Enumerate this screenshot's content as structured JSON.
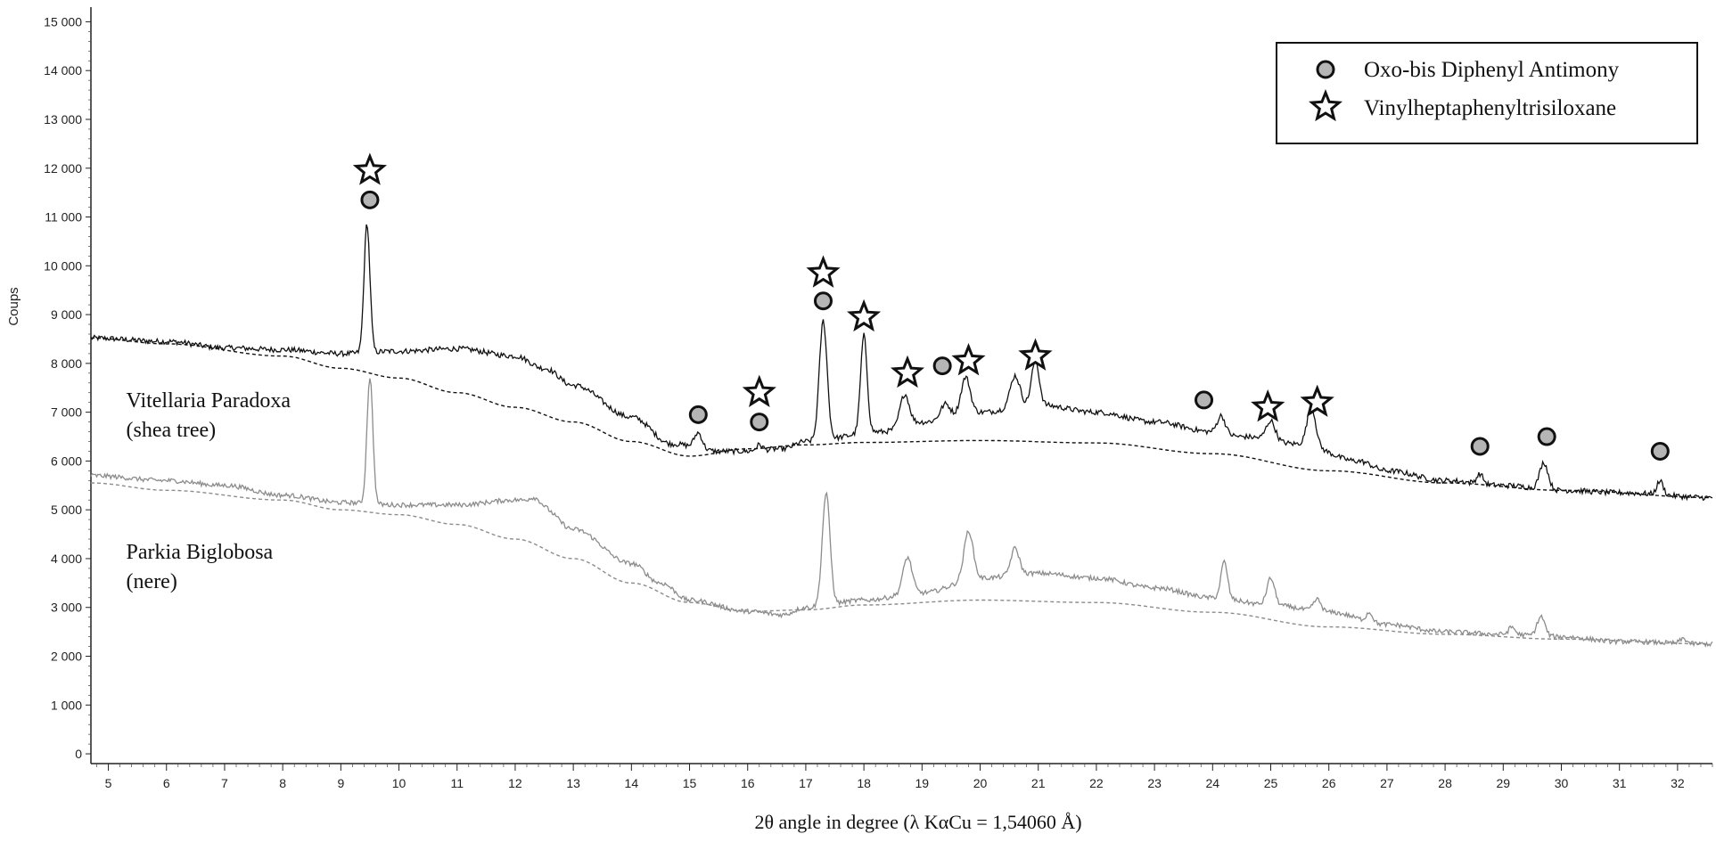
{
  "chart_data": {
    "type": "line",
    "title": "",
    "xlabel": "2θ angle in degree (λ KαCu = 1,54060 Å)",
    "ylabel": "Coups",
    "xlim": [
      4.7,
      32.6
    ],
    "ylim": [
      -200,
      15300
    ],
    "x_ticks": [
      5,
      6,
      7,
      8,
      9,
      10,
      11,
      12,
      13,
      14,
      15,
      16,
      17,
      18,
      19,
      20,
      21,
      22,
      23,
      24,
      25,
      26,
      27,
      28,
      29,
      30,
      31,
      32
    ],
    "y_ticks": [
      0,
      1000,
      2000,
      3000,
      4000,
      5000,
      6000,
      7000,
      8000,
      9000,
      10000,
      11000,
      12000,
      13000,
      14000,
      15000
    ],
    "y_tick_labels": [
      "0",
      "1 000",
      "2 000",
      "3 000",
      "4 000",
      "5 000",
      "6 000",
      "7 000",
      "8 000",
      "9 000",
      "10 000",
      "11 000",
      "12 000",
      "13 000",
      "14 000",
      "15 000"
    ],
    "legend": {
      "position": "top-right",
      "entries": [
        {
          "marker": "circle",
          "label": "Oxo-bis Diphenyl Antimony"
        },
        {
          "marker": "star",
          "label": "Vinylheptaphenyltrisiloxane"
        }
      ]
    },
    "series": [
      {
        "name": "Vitellaria Paradoxa (shea tree)",
        "label_lines": [
          "Vitellaria Paradoxa",
          "(shea tree)"
        ],
        "label_anchor": [
          5.0,
          7100
        ],
        "color": "#111111",
        "baseline": [
          [
            4.7,
            8520
          ],
          [
            6,
            8400
          ],
          [
            8,
            8150
          ],
          [
            9,
            7900
          ],
          [
            10,
            7700
          ],
          [
            11,
            7400
          ],
          [
            12,
            7100
          ],
          [
            13,
            6800
          ],
          [
            14,
            6400
          ],
          [
            15,
            6100
          ],
          [
            16,
            6250
          ],
          [
            17,
            6330
          ],
          [
            18,
            6380
          ],
          [
            20,
            6420
          ],
          [
            22,
            6370
          ],
          [
            24,
            6150
          ],
          [
            26,
            5800
          ],
          [
            28,
            5550
          ],
          [
            30,
            5400
          ],
          [
            32.6,
            5250
          ]
        ],
        "background": [
          [
            4.7,
            8520
          ],
          [
            6,
            8450
          ],
          [
            7,
            8320
          ],
          [
            8,
            8280
          ],
          [
            9,
            8200
          ],
          [
            10,
            8250
          ],
          [
            11,
            8300
          ],
          [
            12,
            8150
          ],
          [
            12.5,
            7900
          ],
          [
            13,
            7550
          ],
          [
            14,
            6900
          ],
          [
            14.7,
            6350
          ],
          [
            15.5,
            6200
          ],
          [
            16,
            6200
          ],
          [
            16.6,
            6250
          ],
          [
            17,
            6400
          ],
          [
            18.3,
            6600
          ],
          [
            19,
            6800
          ],
          [
            20,
            7000
          ],
          [
            21,
            7150
          ],
          [
            22,
            7000
          ],
          [
            23,
            6800
          ],
          [
            24,
            6600
          ],
          [
            24.5,
            6500
          ],
          [
            25.5,
            6350
          ],
          [
            26.5,
            6000
          ],
          [
            27,
            5800
          ],
          [
            28,
            5600
          ],
          [
            29,
            5500
          ],
          [
            30,
            5400
          ],
          [
            31,
            5350
          ],
          [
            32.6,
            5250
          ]
        ],
        "peaks": [
          {
            "x": 9.45,
            "height": 2650,
            "width": 0.09
          },
          {
            "x": 15.15,
            "height": 320,
            "width": 0.12
          },
          {
            "x": 16.2,
            "height": 120,
            "width": 0.1
          },
          {
            "x": 17.3,
            "height": 2450,
            "width": 0.12
          },
          {
            "x": 18.0,
            "height": 2000,
            "width": 0.1
          },
          {
            "x": 18.7,
            "height": 650,
            "width": 0.14
          },
          {
            "x": 19.4,
            "height": 300,
            "width": 0.15
          },
          {
            "x": 19.75,
            "height": 750,
            "width": 0.14
          },
          {
            "x": 20.6,
            "height": 650,
            "width": 0.15
          },
          {
            "x": 20.95,
            "height": 900,
            "width": 0.12
          },
          {
            "x": 24.15,
            "height": 350,
            "width": 0.12
          },
          {
            "x": 25.0,
            "height": 400,
            "width": 0.14
          },
          {
            "x": 25.7,
            "height": 800,
            "width": 0.13
          },
          {
            "x": 28.6,
            "height": 200,
            "width": 0.1
          },
          {
            "x": 29.7,
            "height": 550,
            "width": 0.13
          },
          {
            "x": 31.7,
            "height": 280,
            "width": 0.1
          }
        ]
      },
      {
        "name": "Parkia Biglobosa (nere)",
        "label_lines": [
          "Parkia Biglobosa",
          "(nere)"
        ],
        "label_anchor": [
          5.0,
          4000
        ],
        "color": "#8c8c8c",
        "baseline": [
          [
            4.7,
            5550
          ],
          [
            6,
            5400
          ],
          [
            8,
            5200
          ],
          [
            9,
            5000
          ],
          [
            10,
            4900
          ],
          [
            11,
            4700
          ],
          [
            12,
            4400
          ],
          [
            13,
            4000
          ],
          [
            14,
            3500
          ],
          [
            15,
            3100
          ],
          [
            16,
            2920
          ],
          [
            17,
            2950
          ],
          [
            18,
            3050
          ],
          [
            20,
            3150
          ],
          [
            22,
            3100
          ],
          [
            24,
            2900
          ],
          [
            26,
            2600
          ],
          [
            28,
            2450
          ],
          [
            30,
            2350
          ],
          [
            32.6,
            2250
          ]
        ],
        "background": [
          [
            4.7,
            5700
          ],
          [
            6,
            5600
          ],
          [
            7,
            5500
          ],
          [
            8,
            5300
          ],
          [
            9,
            5150
          ],
          [
            10,
            5100
          ],
          [
            11,
            5100
          ],
          [
            12,
            5200
          ],
          [
            12.5,
            5000
          ],
          [
            13,
            4600
          ],
          [
            14,
            3900
          ],
          [
            14.5,
            3500
          ],
          [
            15,
            3150
          ],
          [
            16,
            2920
          ],
          [
            16.6,
            2850
          ],
          [
            17,
            3000
          ],
          [
            18,
            3150
          ],
          [
            19,
            3300
          ],
          [
            20,
            3600
          ],
          [
            21,
            3700
          ],
          [
            22,
            3600
          ],
          [
            23,
            3400
          ],
          [
            24,
            3200
          ],
          [
            25,
            3050
          ],
          [
            26,
            2900
          ],
          [
            27,
            2650
          ],
          [
            28,
            2500
          ],
          [
            29,
            2450
          ],
          [
            30,
            2400
          ],
          [
            31,
            2300
          ],
          [
            32.6,
            2250
          ]
        ],
        "peaks": [
          {
            "x": 9.5,
            "height": 2600,
            "width": 0.09
          },
          {
            "x": 12.35,
            "height": 200,
            "width": 0.2
          },
          {
            "x": 17.35,
            "height": 2300,
            "width": 0.12
          },
          {
            "x": 18.75,
            "height": 750,
            "width": 0.14
          },
          {
            "x": 19.8,
            "height": 1000,
            "width": 0.14
          },
          {
            "x": 20.6,
            "height": 550,
            "width": 0.13
          },
          {
            "x": 24.2,
            "height": 750,
            "width": 0.1
          },
          {
            "x": 25.0,
            "height": 550,
            "width": 0.12
          },
          {
            "x": 25.8,
            "height": 250,
            "width": 0.12
          },
          {
            "x": 26.7,
            "height": 200,
            "width": 0.1
          },
          {
            "x": 29.15,
            "height": 150,
            "width": 0.1
          },
          {
            "x": 29.65,
            "height": 400,
            "width": 0.12
          },
          {
            "x": 32.1,
            "height": 100,
            "width": 0.1
          }
        ]
      }
    ],
    "annotations": [
      {
        "marker": "star",
        "x": 9.5,
        "y": 11950
      },
      {
        "marker": "circle",
        "x": 9.5,
        "y": 11350
      },
      {
        "marker": "circle",
        "x": 15.15,
        "y": 6950
      },
      {
        "marker": "star",
        "x": 16.2,
        "y": 7400
      },
      {
        "marker": "circle",
        "x": 16.2,
        "y": 6800
      },
      {
        "marker": "star",
        "x": 17.3,
        "y": 9850
      },
      {
        "marker": "circle",
        "x": 17.3,
        "y": 9280
      },
      {
        "marker": "star",
        "x": 18.0,
        "y": 8950
      },
      {
        "marker": "star",
        "x": 18.75,
        "y": 7800
      },
      {
        "marker": "circle",
        "x": 19.35,
        "y": 7950
      },
      {
        "marker": "star",
        "x": 19.8,
        "y": 8050
      },
      {
        "marker": "star",
        "x": 20.95,
        "y": 8150
      },
      {
        "marker": "circle",
        "x": 23.85,
        "y": 7250
      },
      {
        "marker": "star",
        "x": 24.95,
        "y": 7100
      },
      {
        "marker": "star",
        "x": 25.8,
        "y": 7200
      },
      {
        "marker": "circle",
        "x": 28.6,
        "y": 6300
      },
      {
        "marker": "circle",
        "x": 29.75,
        "y": 6500
      },
      {
        "marker": "circle",
        "x": 31.7,
        "y": 6200
      }
    ]
  }
}
